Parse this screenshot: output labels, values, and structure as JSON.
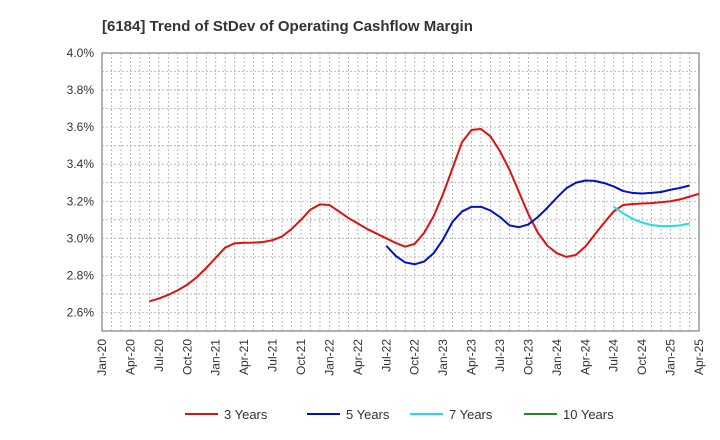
{
  "chart_data": {
    "type": "line",
    "title": "[6184]  Trend of StDev of Operating Cashflow Margin",
    "xlabel": "",
    "ylabel": "",
    "x_ticks": [
      "Jan-20",
      "Apr-20",
      "Jul-20",
      "Oct-20",
      "Jan-21",
      "Apr-21",
      "Jul-21",
      "Oct-21",
      "Jan-22",
      "Apr-22",
      "Jul-22",
      "Oct-22",
      "Jan-23",
      "Apr-23",
      "Jul-23",
      "Oct-23",
      "Jan-24",
      "Apr-24",
      "Jul-24",
      "Oct-24",
      "Jan-25",
      "Apr-25"
    ],
    "y_ticks": [
      "2.6%",
      "2.8%",
      "3.0%",
      "3.2%",
      "3.4%",
      "3.6%",
      "3.8%",
      "4.0%"
    ],
    "y_tick_values": [
      2.6,
      2.8,
      3.0,
      3.2,
      3.4,
      3.6,
      3.8,
      4.0
    ],
    "ylim": [
      2.5,
      4.0
    ],
    "xlim": [
      "2020-01",
      "2025-04"
    ],
    "grid": true,
    "legend_position": "bottom",
    "series": [
      {
        "name": "3 Years",
        "color": "#dd1111",
        "points": [
          [
            "2020-06",
            2.66
          ],
          [
            "2020-07",
            2.675
          ],
          [
            "2020-08",
            2.695
          ],
          [
            "2020-09",
            2.72
          ],
          [
            "2020-10",
            2.75
          ],
          [
            "2020-11",
            2.79
          ],
          [
            "2020-12",
            2.84
          ],
          [
            "2021-01",
            2.895
          ],
          [
            "2021-02",
            2.95
          ],
          [
            "2021-03",
            2.973
          ],
          [
            "2021-04",
            2.976
          ],
          [
            "2021-05",
            2.977
          ],
          [
            "2021-06",
            2.98
          ],
          [
            "2021-07",
            2.99
          ],
          [
            "2021-08",
            3.01
          ],
          [
            "2021-09",
            3.05
          ],
          [
            "2021-10",
            3.1
          ],
          [
            "2021-11",
            3.155
          ],
          [
            "2021-12",
            3.183
          ],
          [
            "2022-01",
            3.18
          ],
          [
            "2022-02",
            3.145
          ],
          [
            "2022-03",
            3.11
          ],
          [
            "2022-04",
            3.08
          ],
          [
            "2022-05",
            3.05
          ],
          [
            "2022-06",
            3.025
          ],
          [
            "2022-07",
            3.0
          ],
          [
            "2022-08",
            2.975
          ],
          [
            "2022-09",
            2.955
          ],
          [
            "2022-10",
            2.97
          ],
          [
            "2022-11",
            3.03
          ],
          [
            "2022-12",
            3.12
          ],
          [
            "2023-01",
            3.24
          ],
          [
            "2023-02",
            3.38
          ],
          [
            "2023-03",
            3.52
          ],
          [
            "2023-04",
            3.585
          ],
          [
            "2023-05",
            3.59
          ],
          [
            "2023-06",
            3.55
          ],
          [
            "2023-07",
            3.47
          ],
          [
            "2023-08",
            3.37
          ],
          [
            "2023-09",
            3.25
          ],
          [
            "2023-10",
            3.13
          ],
          [
            "2023-11",
            3.03
          ],
          [
            "2023-12",
            2.96
          ],
          [
            "2024-01",
            2.92
          ],
          [
            "2024-02",
            2.9
          ],
          [
            "2024-03",
            2.91
          ],
          [
            "2024-04",
            2.955
          ],
          [
            "2024-05",
            3.02
          ],
          [
            "2024-06",
            3.085
          ],
          [
            "2024-07",
            3.145
          ],
          [
            "2024-08",
            3.18
          ],
          [
            "2024-09",
            3.185
          ],
          [
            "2024-10",
            3.188
          ],
          [
            "2024-11",
            3.19
          ],
          [
            "2024-12",
            3.195
          ],
          [
            "2025-01",
            3.2
          ],
          [
            "2025-02",
            3.21
          ],
          [
            "2025-03",
            3.225
          ],
          [
            "2025-04",
            3.24
          ]
        ]
      },
      {
        "name": "5 Years",
        "color": "#0011cc",
        "points": [
          [
            "2022-07",
            2.96
          ],
          [
            "2022-08",
            2.905
          ],
          [
            "2022-09",
            2.87
          ],
          [
            "2022-10",
            2.86
          ],
          [
            "2022-11",
            2.875
          ],
          [
            "2022-12",
            2.92
          ],
          [
            "2023-01",
            2.995
          ],
          [
            "2023-02",
            3.09
          ],
          [
            "2023-03",
            3.145
          ],
          [
            "2023-04",
            3.17
          ],
          [
            "2023-05",
            3.17
          ],
          [
            "2023-06",
            3.15
          ],
          [
            "2023-07",
            3.115
          ],
          [
            "2023-08",
            3.07
          ],
          [
            "2023-09",
            3.06
          ],
          [
            "2023-10",
            3.075
          ],
          [
            "2023-11",
            3.115
          ],
          [
            "2023-12",
            3.165
          ],
          [
            "2024-01",
            3.22
          ],
          [
            "2024-02",
            3.27
          ],
          [
            "2024-03",
            3.3
          ],
          [
            "2024-04",
            3.312
          ],
          [
            "2024-05",
            3.31
          ],
          [
            "2024-06",
            3.298
          ],
          [
            "2024-07",
            3.28
          ],
          [
            "2024-08",
            3.255
          ],
          [
            "2024-09",
            3.245
          ],
          [
            "2024-10",
            3.242
          ],
          [
            "2024-11",
            3.245
          ],
          [
            "2024-12",
            3.25
          ],
          [
            "2025-01",
            3.262
          ],
          [
            "2025-02",
            3.272
          ],
          [
            "2025-03",
            3.285
          ]
        ]
      },
      {
        "name": "7 Years",
        "color": "#22dddd",
        "points": [
          [
            "2024-07",
            3.17
          ],
          [
            "2024-08",
            3.135
          ],
          [
            "2024-09",
            3.105
          ],
          [
            "2024-10",
            3.085
          ],
          [
            "2024-11",
            3.072
          ],
          [
            "2024-12",
            3.066
          ],
          [
            "2025-01",
            3.066
          ],
          [
            "2025-02",
            3.07
          ],
          [
            "2025-03",
            3.08
          ]
        ]
      },
      {
        "name": "10 Years",
        "color": "#228822",
        "points": []
      }
    ]
  }
}
